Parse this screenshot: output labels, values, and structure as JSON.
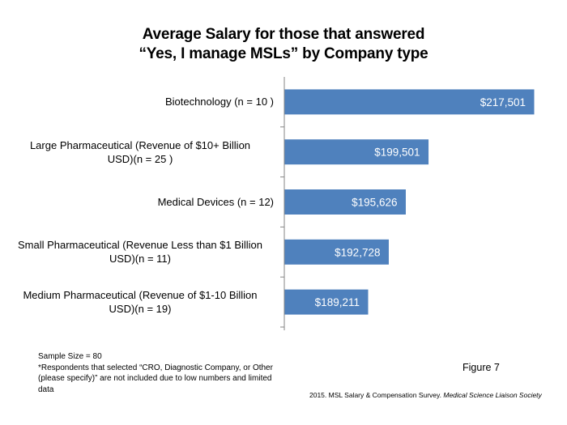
{
  "chart_data": {
    "type": "bar",
    "orientation": "horizontal",
    "title": "Average Salary for those that answered “Yes, I manage MSLs” by Company type",
    "title_lines": [
      "Average Salary for those that answered",
      "“Yes, I manage MSLs” by Company type"
    ],
    "xlabel": "",
    "ylabel": "",
    "categories": [
      "Biotechnology (n = 10 )",
      "Large Pharmaceutical (Revenue of $10+ Billion USD)(n = 25 )",
      "Medical Devices (n = 12)",
      "Small Pharmaceutical (Revenue Less than $1 Billion USD)(n = 11)",
      "Medium Pharmaceutical (Revenue of $1-10 Billion USD)(n = 19)"
    ],
    "category_lines": [
      [
        "Biotechnology (n = 10 )"
      ],
      [
        "Large Pharmaceutical (Revenue of $10+ Billion",
        "USD)(n = 25 )"
      ],
      [
        "Medical Devices (n = 12)"
      ],
      [
        "Small Pharmaceutical (Revenue Less than $1 Billion",
        "USD)(n = 11)"
      ],
      [
        "Medium Pharmaceutical (Revenue of $1-10 Billion",
        "USD)(n = 19)"
      ]
    ],
    "values": [
      217501,
      199501,
      195626,
      192728,
      189211
    ],
    "data_labels": [
      "$217,501",
      "$199,501",
      "$195,626",
      "$192,728",
      "$189,211"
    ],
    "xlim": [
      175000,
      220000
    ],
    "x_axis_visible": false,
    "grid": false,
    "legend": "none",
    "bar_color": "#4f81bd"
  },
  "footnotes": {
    "sample_size": "Sample Size = 80",
    "note": "*Respondents that selected “CRO, Diagnostic Company, or Other (please specify)” are not included due to low numbers and limited data",
    "figure": "Figure 7",
    "source_plain": "2015. MSL Salary & Compensation Survey. ",
    "source_italic": "Medical Science Liaison Society"
  }
}
